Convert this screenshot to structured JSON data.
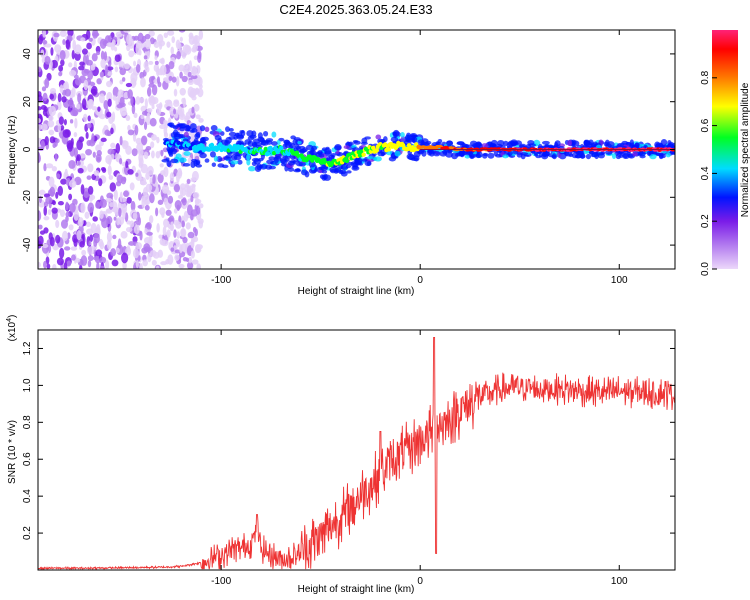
{
  "figure_title": "C2E4.2025.363.05.24.E33",
  "chart_data": [
    {
      "type": "heatmap",
      "title": "C2E4.2025.363.05.24.E33",
      "xlabel": "Height of straight line (km)",
      "ylabel": "Frequency (Hz)",
      "xlim": [
        -192,
        128
      ],
      "ylim": [
        -50,
        50
      ],
      "x_ticks": [
        -100,
        0,
        100
      ],
      "y_ticks": [
        -40,
        -20,
        0,
        20,
        40
      ],
      "x_tick_labels": [
        "-100",
        "0",
        "100"
      ],
      "y_tick_labels": [
        "-40",
        "-20",
        "0",
        "20",
        "40"
      ],
      "colorbar": {
        "label": "Normalized spectral amplitude",
        "range": [
          0.0,
          1.0
        ],
        "ticks": [
          0.0,
          0.2,
          0.4,
          0.6,
          0.8
        ],
        "tick_labels": [
          "0.0",
          "0.2",
          "0.4",
          "0.6",
          "0.8"
        ],
        "colors": [
          "#ecd8fa",
          "#7a1ce8",
          "#0014ff",
          "#00dcff",
          "#00ff22",
          "#ffff00",
          "#ff7a00",
          "#ff0000",
          "#ff2277"
        ]
      },
      "doppler_trace": {
        "heights_km": [
          -128,
          -120,
          -110,
          -100,
          -90,
          -80,
          -70,
          -60,
          -50,
          -45,
          -40,
          -35,
          -30,
          -25,
          -20,
          -15,
          -10,
          -5,
          0,
          10,
          20,
          40,
          60,
          80,
          100,
          128
        ],
        "frequency_hz": [
          3,
          2,
          1,
          1,
          0,
          -1,
          0,
          -3,
          -5,
          -6,
          -5,
          -3,
          -2,
          0,
          1,
          1,
          2,
          1,
          1,
          1,
          0,
          0,
          0,
          0,
          0,
          0
        ]
      },
      "noise_region_km": [
        -192,
        -110
      ]
    },
    {
      "type": "line",
      "xlabel": "Height of straight line (km)",
      "ylabel": "SNR (10 * v/v)",
      "y_multiplier": "(x10",
      "y_multiplier_exp": "4",
      "y_multiplier_close": ")",
      "xlim": [
        -192,
        128
      ],
      "ylim": [
        0,
        1.3
      ],
      "x_ticks": [
        -100,
        0,
        100
      ],
      "y_ticks": [
        0.2,
        0.4,
        0.6,
        0.8,
        1.0,
        1.2
      ],
      "x_tick_labels": [
        "-100",
        "0",
        "100"
      ],
      "y_tick_labels": [
        "0.2",
        "0.4",
        "0.6",
        "0.8",
        "1.0",
        "1.2"
      ],
      "series": [
        {
          "name": "SNR",
          "color": "#ee3333",
          "x": [
            -192,
            -170,
            -150,
            -130,
            -120,
            -110,
            -100,
            -95,
            -90,
            -85,
            -82,
            -80,
            -75,
            -70,
            -65,
            -60,
            -55,
            -50,
            -45,
            -40,
            -35,
            -30,
            -25,
            -20,
            -15,
            -10,
            -5,
            0,
            5,
            8,
            10,
            12,
            15,
            20,
            25,
            30,
            35,
            40,
            50,
            60,
            70,
            80,
            90,
            100,
            110,
            120,
            128
          ],
          "y": [
            0.01,
            0.01,
            0.012,
            0.015,
            0.02,
            0.04,
            0.08,
            0.11,
            0.12,
            0.14,
            0.22,
            0.12,
            0.08,
            0.06,
            0.07,
            0.1,
            0.14,
            0.18,
            0.24,
            0.28,
            0.34,
            0.4,
            0.46,
            0.52,
            0.58,
            0.62,
            0.66,
            0.7,
            0.74,
            0.76,
            0.8,
            0.78,
            0.82,
            0.86,
            0.9,
            0.94,
            0.96,
            0.98,
            0.99,
            0.98,
            0.98,
            0.97,
            0.96,
            0.97,
            0.96,
            0.96,
            0.95
          ],
          "spikes": [
            {
              "x": -82,
              "y": 0.3
            },
            {
              "x": -20,
              "y": 0.75
            },
            {
              "x": 7,
              "y": 1.26
            },
            {
              "x": 8,
              "y": 0.09
            }
          ]
        }
      ]
    }
  ]
}
